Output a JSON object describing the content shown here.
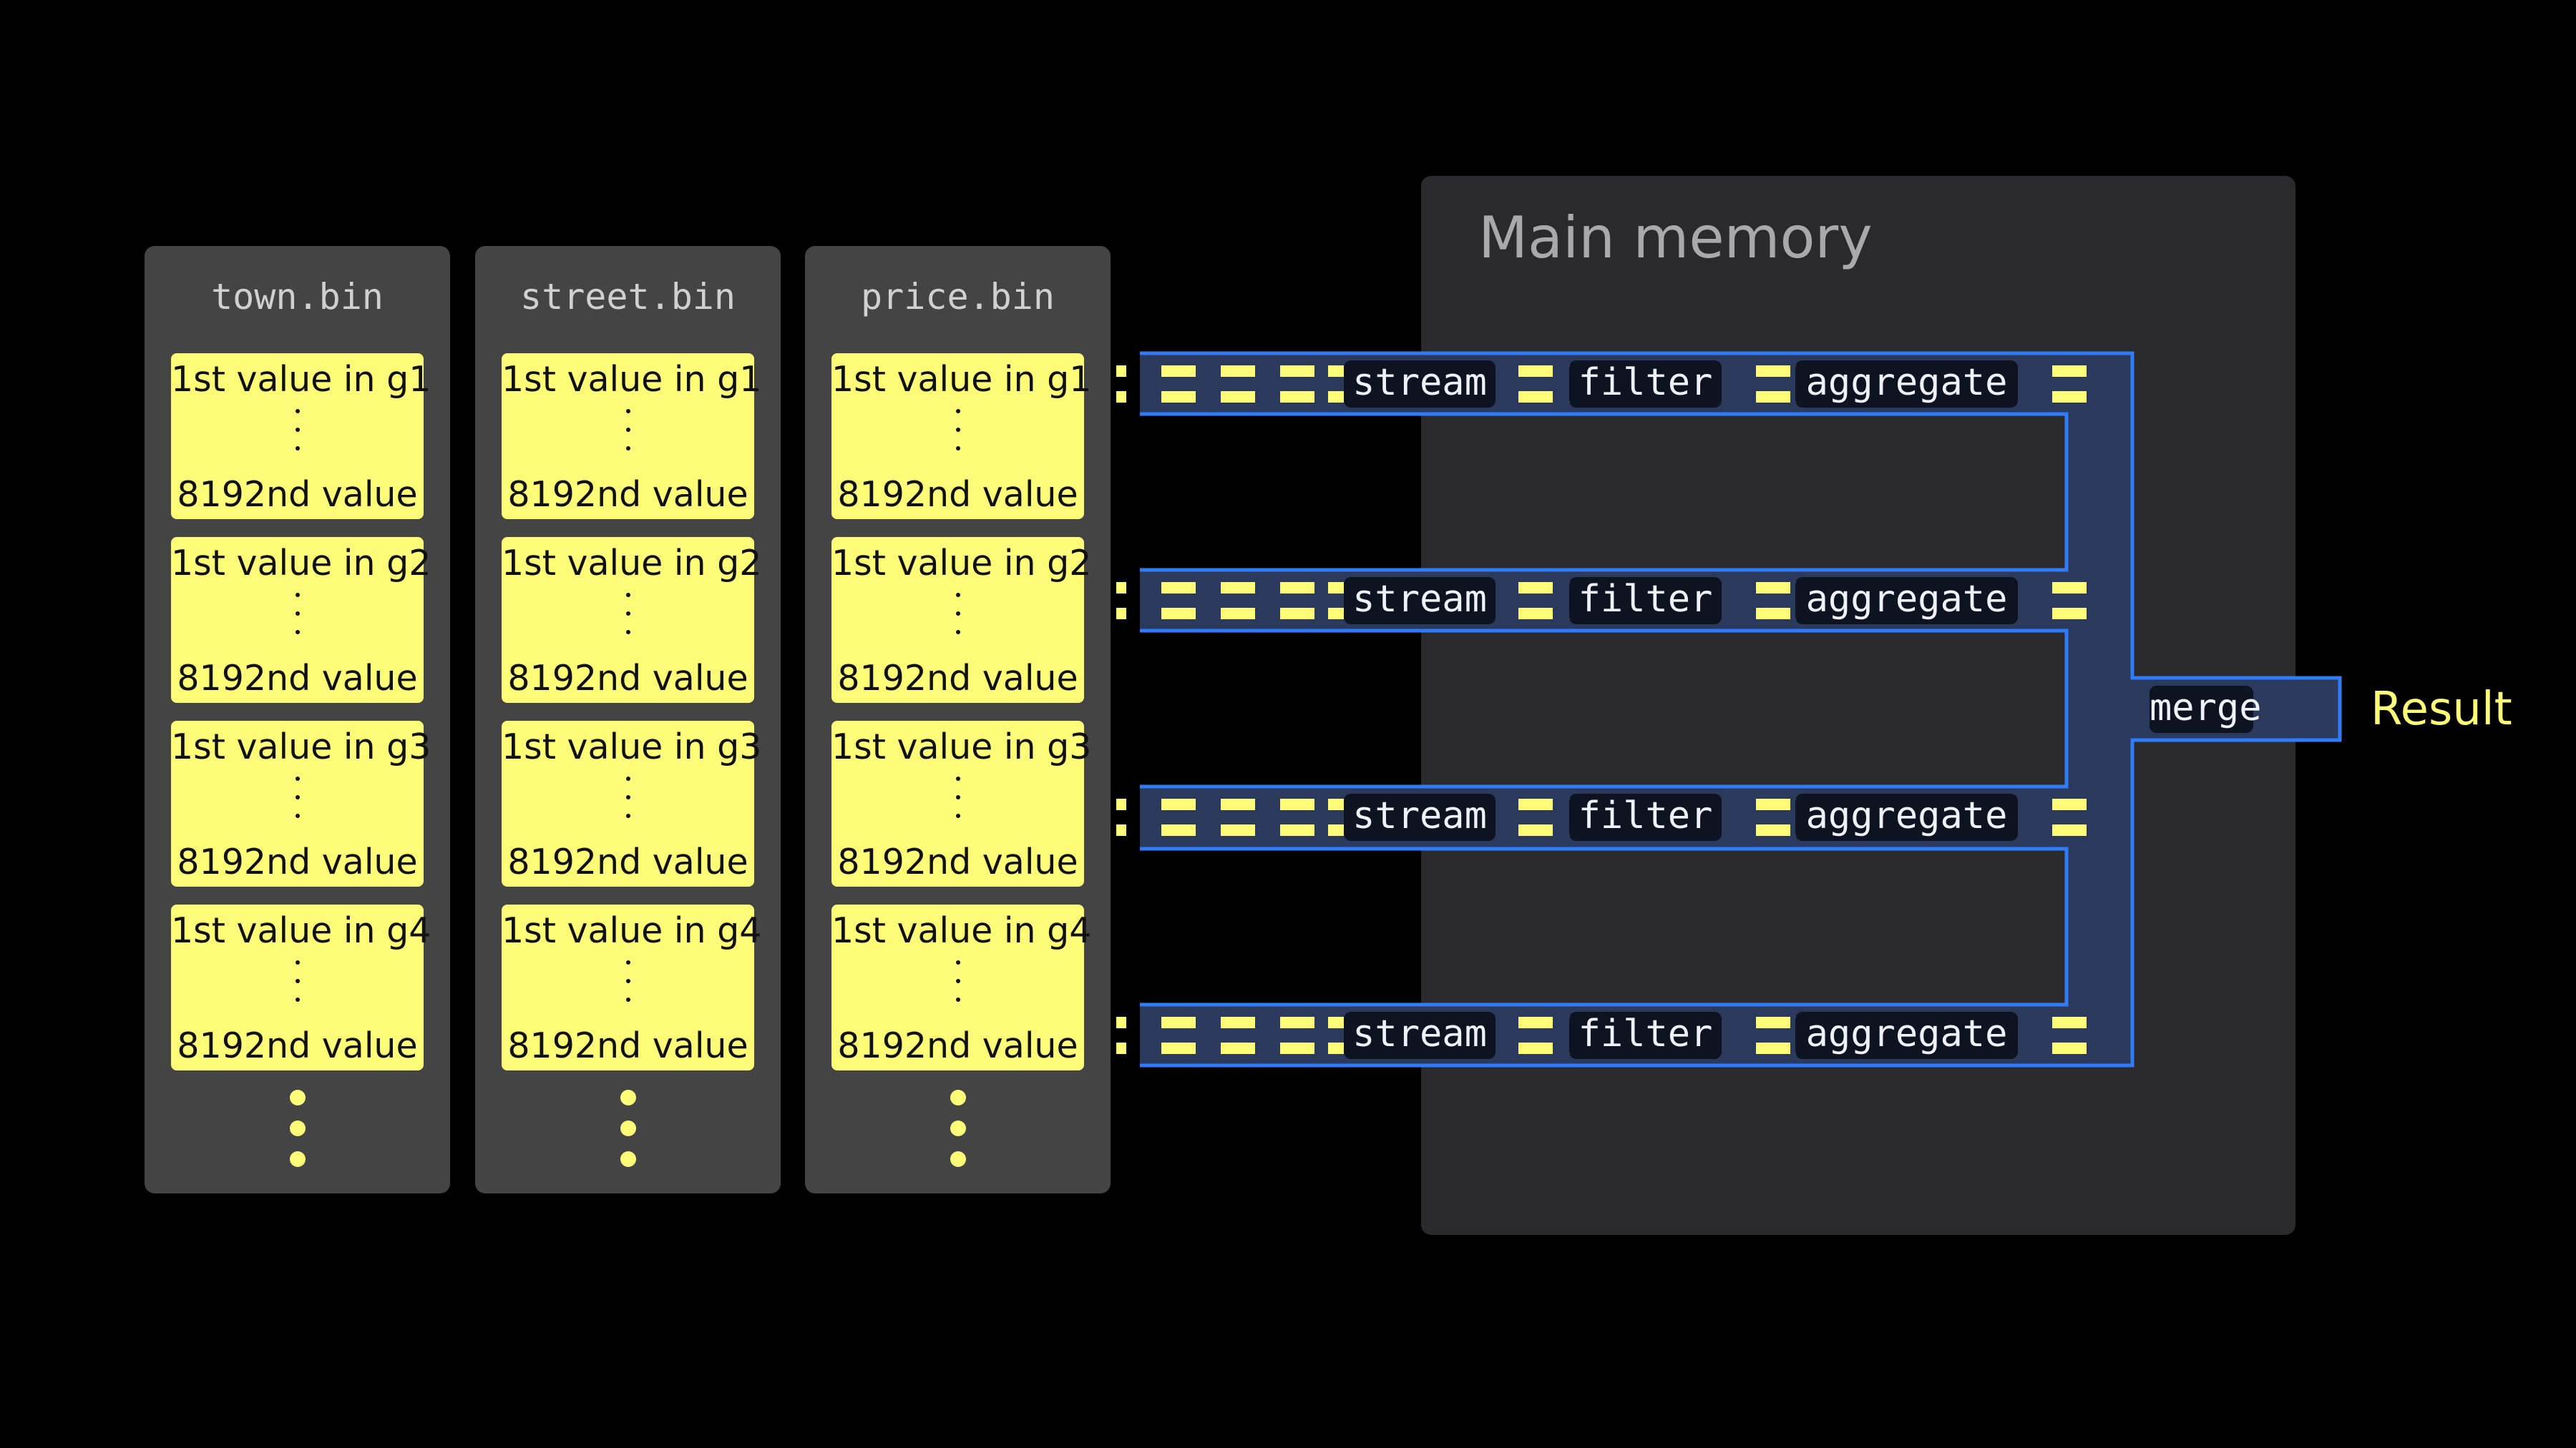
{
  "files": [
    {
      "name": "town.bin",
      "granules": [
        {
          "first": "1st value in g1",
          "last": "8192nd value"
        },
        {
          "first": "1st value in g2",
          "last": "8192nd value"
        },
        {
          "first": "1st value in g3",
          "last": "8192nd value"
        },
        {
          "first": "1st value in g4",
          "last": "8192nd value"
        }
      ]
    },
    {
      "name": "street.bin",
      "granules": [
        {
          "first": "1st value in g1",
          "last": "8192nd value"
        },
        {
          "first": "1st value in g2",
          "last": "8192nd value"
        },
        {
          "first": "1st value in g3",
          "last": "8192nd value"
        },
        {
          "first": "1st value in g4",
          "last": "8192nd value"
        }
      ]
    },
    {
      "name": "price.bin",
      "granules": [
        {
          "first": "1st value in g1",
          "last": "8192nd value"
        },
        {
          "first": "1st value in g2",
          "last": "8192nd value"
        },
        {
          "first": "1st value in g3",
          "last": "8192nd value"
        },
        {
          "first": "1st value in g4",
          "last": "8192nd value"
        }
      ]
    }
  ],
  "memory": {
    "title": "Main memory"
  },
  "lanes": [
    {
      "stages": [
        "stream",
        "filter",
        "aggregate"
      ]
    },
    {
      "stages": [
        "stream",
        "filter",
        "aggregate"
      ]
    },
    {
      "stages": [
        "stream",
        "filter",
        "aggregate"
      ]
    },
    {
      "stages": [
        "stream",
        "filter",
        "aggregate"
      ]
    }
  ],
  "merge": {
    "label": "merge"
  },
  "result": {
    "label": "Result"
  },
  "colors": {
    "cell": "#fdfb78",
    "pipe_fill": "#2b3a5c",
    "pipe_stroke": "#2f7cf6",
    "panel": "#444444",
    "memory": "#2a2a2d"
  }
}
